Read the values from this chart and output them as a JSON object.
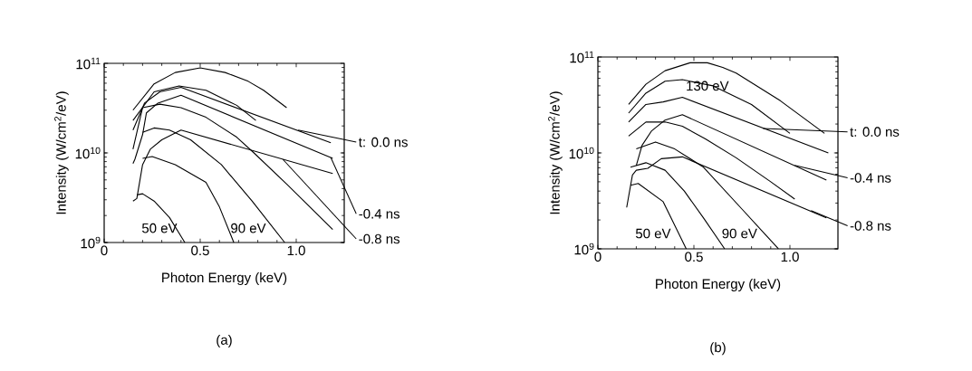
{
  "chart_data": [
    {
      "type": "line",
      "xlabel": "Photon Energy (keV)",
      "ylabel": "Intensity (W/cm$^{2}$/eV)",
      "log": "y",
      "grid": false,
      "xlim": [
        0,
        1.25
      ],
      "ylim": [
        1000000000.0,
        100000000000.0
      ],
      "xticks": [
        0,
        0.5,
        {
          "value": 1,
          "label": "1.0"
        }
      ],
      "yticks": [
        {
          "value": 1000000000.0,
          "label": "10$^{9}$"
        },
        {
          "value": 10000000000.0,
          "label": "10$^{10}$"
        },
        {
          "value": 100000000000.0,
          "label": "10$^{11}$"
        }
      ],
      "series": [
        {
          "color": "#000000",
          "x": [
            0.15,
            0.21,
            0.29,
            0.4,
            1.18
          ],
          "values": [
            18000000000.0,
            36000000000.0,
            48000000000.0,
            54000000000.0,
            13000000000.0
          ]
        },
        {
          "color": "#000000",
          "x": [
            0.15,
            0.16,
            0.2,
            0.22,
            0.28,
            0.4,
            1.19
          ],
          "values": [
            7600000000.0,
            8500000000.0,
            16000000000.0,
            28000000000.0,
            36000000000.0,
            44000000000.0,
            8700000000.0
          ]
        },
        {
          "color": "#000000",
          "x": [
            0.15,
            0.17,
            0.2,
            0.24,
            0.3,
            0.4,
            1.19
          ],
          "values": [
            2900000000.0,
            3100000000.0,
            7400000000.0,
            11000000000.0,
            14000000000.0,
            18000000000.0,
            5900000000.0
          ]
        },
        {
          "color": "#000000",
          "x": [
            0.15,
            0.26,
            0.37,
            0.5,
            0.63,
            0.75,
            0.83,
            0.95
          ],
          "values": [
            30000000000.0,
            59000000000.0,
            79000000000.0,
            89000000000.0,
            79000000000.0,
            63000000000.0,
            50000000000.0,
            32000000000.0
          ]
        },
        {
          "color": "#000000",
          "x": [
            0.15,
            0.26,
            0.39,
            0.53,
            0.69,
            0.79
          ],
          "values": [
            23000000000.0,
            48000000000.0,
            56000000000.0,
            50000000000.0,
            34000000000.0,
            23000000000.0
          ]
        },
        {
          "color": "#000000",
          "x": [
            0.15,
            0.2,
            0.29,
            0.4,
            0.53,
            0.69,
            0.78,
            0.95,
            1.19
          ],
          "values": [
            11000000000.0,
            32000000000.0,
            35000000000.0,
            32000000000.0,
            25000000000.0,
            15000000000.0,
            10000000000.0,
            4500000000.0,
            1400000000.0
          ]
        },
        {
          "color": "#000000",
          "x": [
            0.2,
            0.26,
            0.34,
            0.45,
            0.61,
            0.77,
            0.94
          ],
          "values": [
            17000000000.0,
            19000000000.0,
            18000000000.0,
            14000000000.0,
            7400000000.0,
            2900000000.0,
            1000000000.0
          ]
        },
        {
          "color": "#000000",
          "x": [
            0.2,
            0.25,
            0.37,
            0.53,
            0.6,
            0.675
          ],
          "values": [
            8700000000.0,
            9100000000.0,
            7400000000.0,
            4700000000.0,
            2500000000.0,
            1000000000.0
          ]
        },
        {
          "color": "#000000",
          "x": [
            0.17,
            0.2,
            0.26,
            0.34,
            0.42
          ],
          "values": [
            3400000000.0,
            3500000000.0,
            2900000000.0,
            1900000000.0,
            1000000000.0
          ]
        }
      ],
      "annotations": [
        {
          "text": "t: 0.0 ns",
          "x": 1.01,
          "y": 18000000000.0
        },
        {
          "text": "-0.4 ns",
          "x": 1.18,
          "y": 8900000000.0
        },
        {
          "text": "-0.8 ns",
          "x": 0.93,
          "y": 8500000000.0
        },
        "50 eV",
        "90 eV",
        "(a)"
      ]
    },
    {
      "type": "line",
      "xlabel": "Photon Energy (keV)",
      "ylabel": "Intensity (W/cm$^{2}$/eV)",
      "log": "y",
      "grid": false,
      "xlim": [
        0,
        1.25
      ],
      "ylim": [
        1000000000.0,
        100000000000.0
      ],
      "xticks": [
        0,
        0.5,
        {
          "value": 1,
          "label": "1.0"
        }
      ],
      "yticks": [
        {
          "value": 1000000000.0,
          "label": "10$^{9}$"
        },
        {
          "value": 10000000000.0,
          "label": "10$^{10}$"
        },
        {
          "value": 100000000000.0,
          "label": "10$^{11}$"
        }
      ],
      "series": [
        {
          "color": "#000000",
          "x": [
            0.16,
            0.25,
            0.34,
            0.44,
            1.2
          ],
          "values": [
            21000000000.0,
            32000000000.0,
            34000000000.0,
            38000000000.0,
            10000000000.0
          ]
        },
        {
          "color": "#000000",
          "x": [
            0.2,
            0.23,
            0.28,
            0.35,
            0.44,
            1.19
          ],
          "values": [
            7400000000.0,
            12000000000.0,
            17000000000.0,
            22000000000.0,
            25000000000.0,
            5200000000.0
          ]
        },
        {
          "color": "#000000",
          "x": [
            0.15,
            0.18,
            0.2,
            0.26,
            0.33,
            0.44,
            1.19
          ],
          "values": [
            2700000000.0,
            5900000000.0,
            6600000000.0,
            6900000000.0,
            8700000000.0,
            9100000000.0,
            2100000000.0
          ]
        },
        {
          "color": "#000000",
          "x": [
            0.16,
            0.25,
            0.35,
            0.48,
            0.57,
            0.65,
            0.72,
            0.95,
            1.18
          ],
          "values": [
            32000000000.0,
            52000000000.0,
            72000000000.0,
            87000000000.0,
            87000000000.0,
            78000000000.0,
            68000000000.0,
            35000000000.0,
            16000000000.0
          ]
        },
        {
          "color": "#000000",
          "x": [
            0.16,
            0.25,
            0.35,
            0.44,
            0.6,
            0.8,
            1.0
          ],
          "values": [
            26000000000.0,
            42000000000.0,
            56000000000.0,
            58000000000.0,
            50000000000.0,
            32000000000.0,
            16000000000.0
          ]
        },
        {
          "color": "#000000",
          "x": [
            0.16,
            0.25,
            0.35,
            0.44,
            0.56,
            0.72,
            0.9,
            1.025
          ],
          "values": [
            15000000000.0,
            21000000000.0,
            21000000000.0,
            19000000000.0,
            14000000000.0,
            8900000000.0,
            5000000000.0,
            3300000000.0
          ]
        },
        {
          "color": "#000000",
          "x": [
            0.2,
            0.3,
            0.4,
            0.55,
            0.75,
            0.94
          ],
          "values": [
            11000000000.0,
            13000000000.0,
            11000000000.0,
            7100000000.0,
            2600000000.0,
            1000000000.0
          ]
        },
        {
          "color": "#000000",
          "x": [
            0.17,
            0.25,
            0.35,
            0.45,
            0.55,
            0.66
          ],
          "values": [
            7100000000.0,
            7900000000.0,
            6600000000.0,
            4000000000.0,
            2100000000.0,
            1000000000.0
          ]
        },
        {
          "color": "#000000",
          "x": [
            0.17,
            0.21,
            0.34,
            0.46
          ],
          "values": [
            4600000000.0,
            4800000000.0,
            3100000000.0,
            1000000000.0
          ]
        }
      ],
      "annotations": [
        {
          "text": "t: 0.0 ns",
          "x": 0.86,
          "y": 18000000000.0
        },
        {
          "text": "-0.4 ns",
          "x": 1.025,
          "y": 7400000000.0
        },
        {
          "text": "-0.8 ns",
          "x": 1.11,
          "y": 2500000000.0
        },
        {
          "text": "130 eV",
          "x": 0.57,
          "y": 50000000000.0
        },
        "50 eV",
        "90 eV",
        "(b)"
      ]
    }
  ]
}
